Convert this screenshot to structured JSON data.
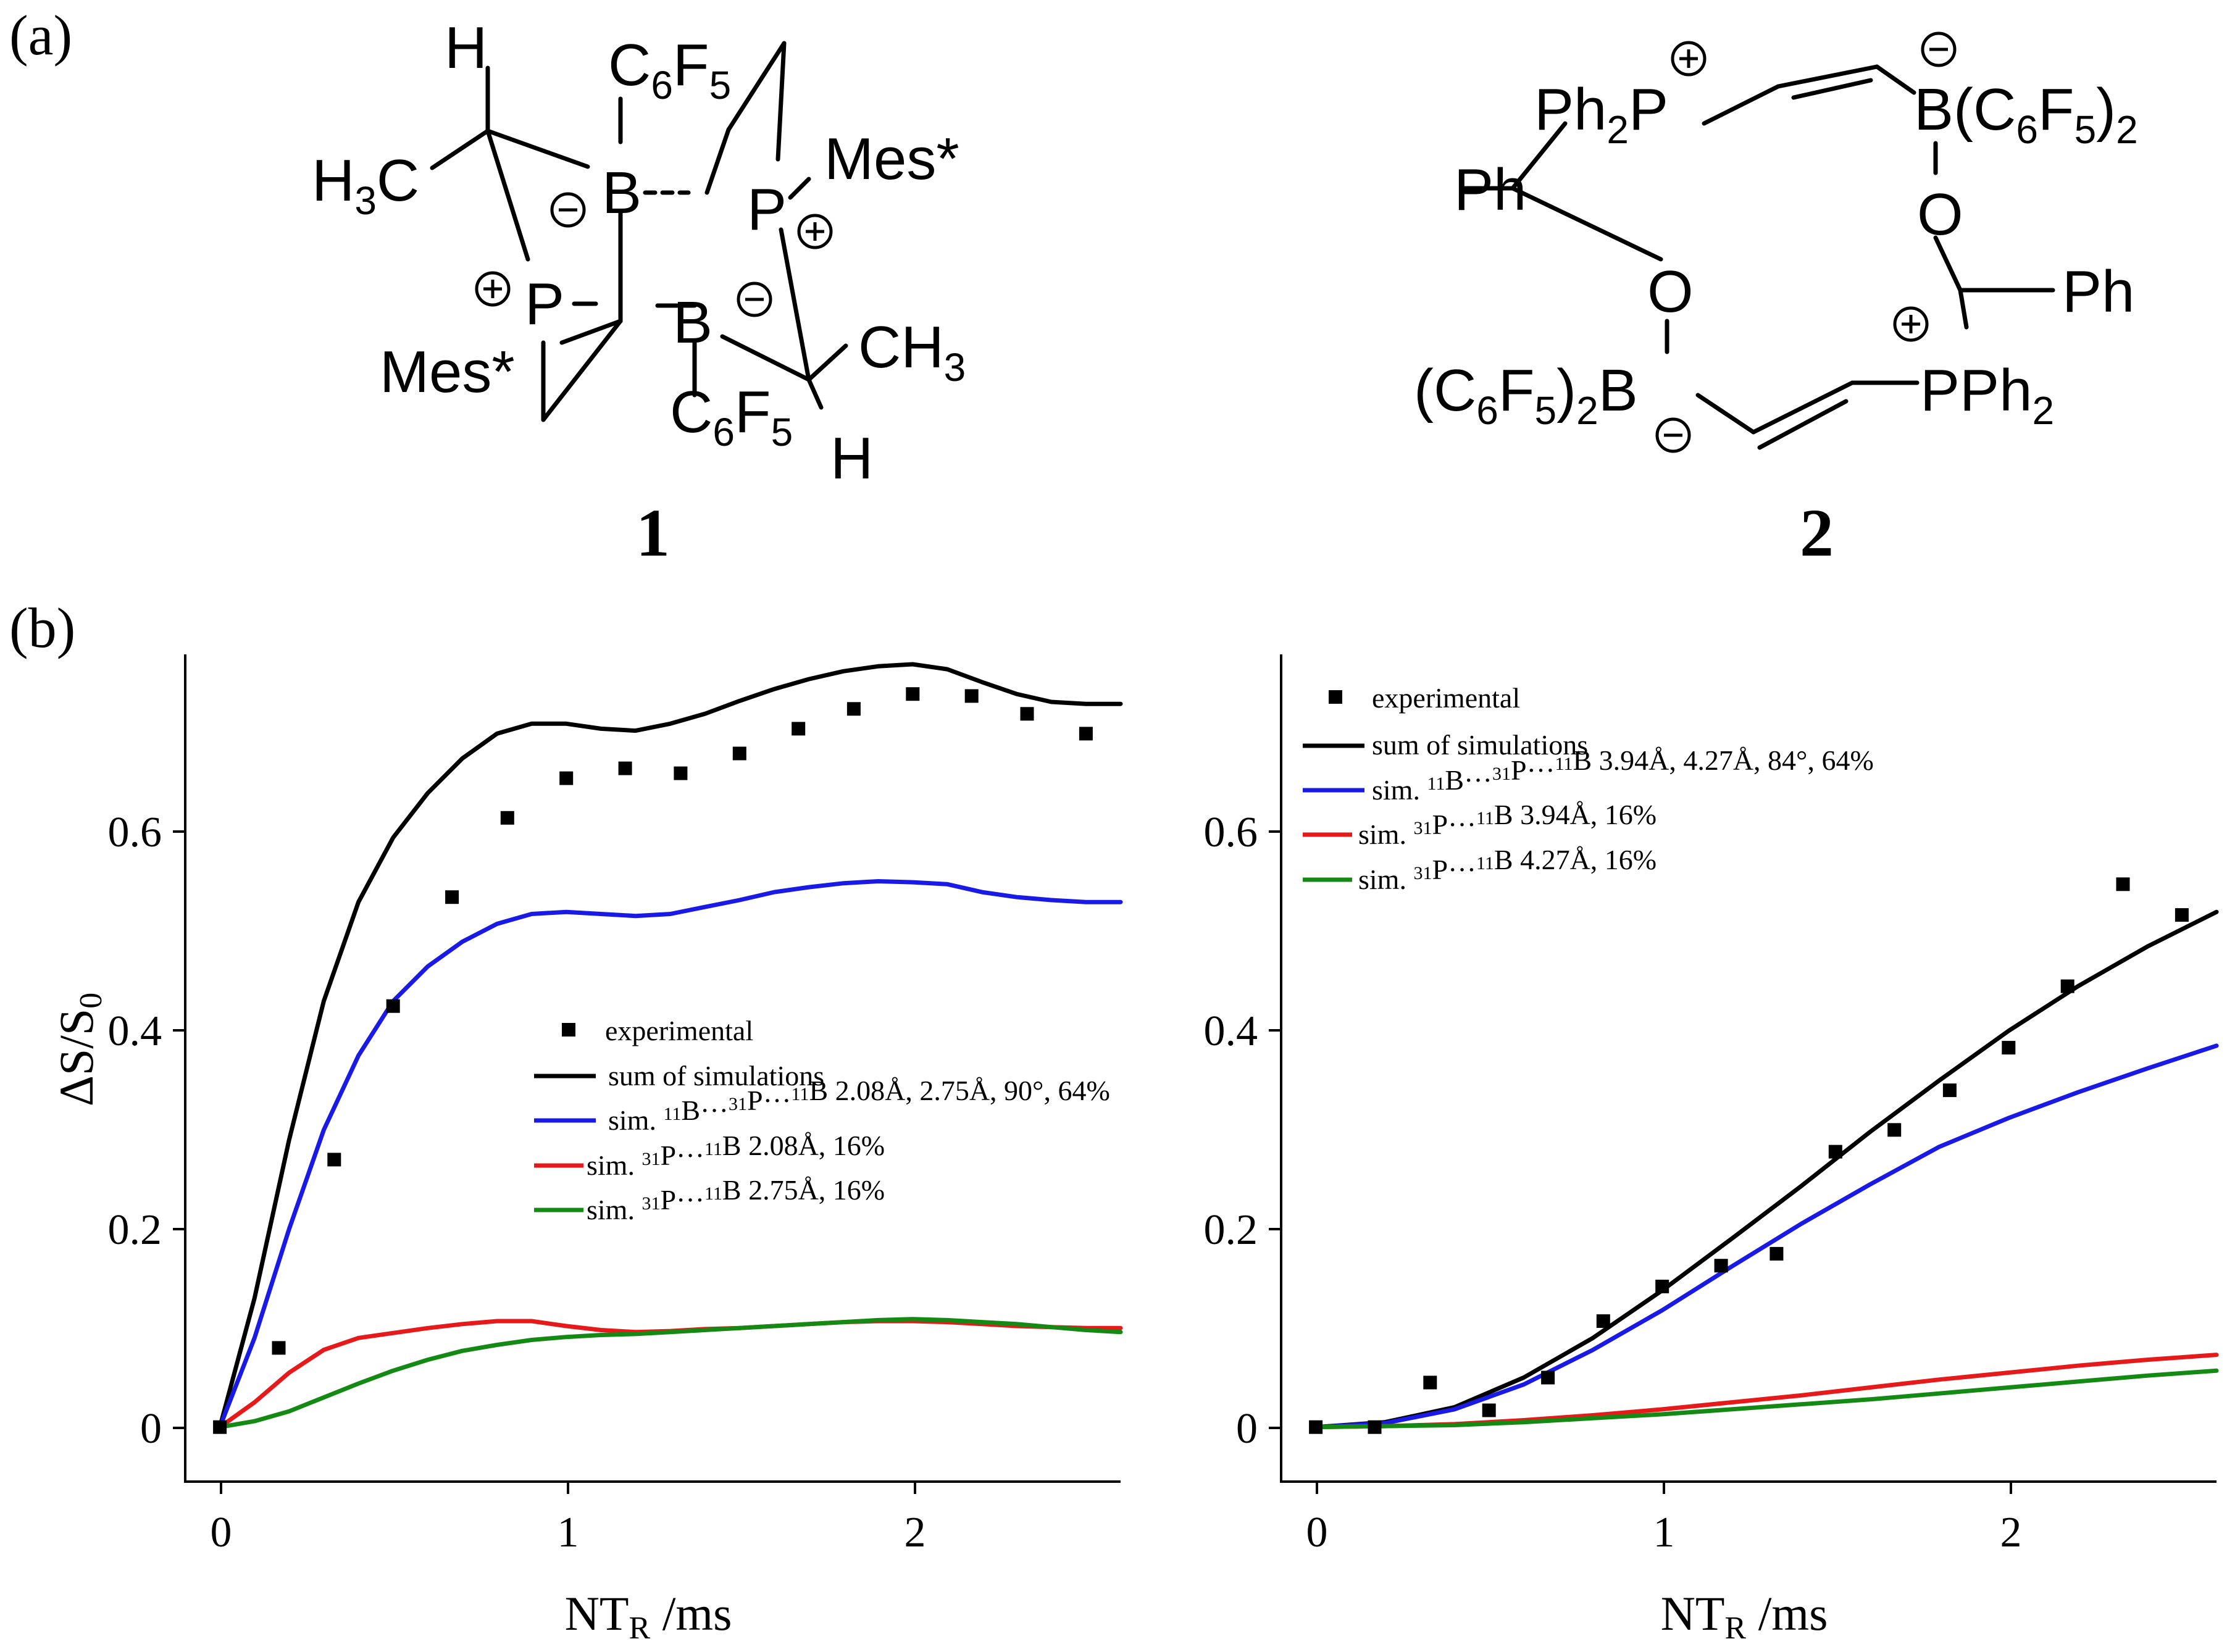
{
  "labels": {
    "panel_a": "(a)",
    "panel_b": "(b)"
  },
  "structures": {
    "c1": {
      "number": "1",
      "atoms": {
        "H_top": "H",
        "H3C": "H3C",
        "C6F5_top": "C6F5",
        "B1": "B",
        "Mes1": "Mes*",
        "P1": "P",
        "P2": "P",
        "B2": "B",
        "CH3": "CH3",
        "Mes2": "Mes*",
        "C6F5_bottom": "C6F5",
        "H_bottom": "H"
      }
    },
    "c2": {
      "number": "2",
      "atoms": {
        "Ph2P": "Ph2P",
        "BC6F5": "B(C6F5)2",
        "Ph_left": "Ph",
        "O_right": "O",
        "O_left": "O",
        "Ph_right": "Ph",
        "C6F52B": "(C6F5)2B",
        "PPh2": "PPh2"
      }
    }
  },
  "charges": {
    "plus": "+",
    "minus": "−"
  },
  "colors": {
    "experimental": "#000000",
    "sum": "#000000",
    "sim_BPB": "#1a1ae6",
    "sim_PB_a": "#e61a1a",
    "sim_PB_b": "#148a14"
  },
  "chart_data": [
    {
      "type": "line",
      "panel": "left",
      "xlabel": "NTR /ms",
      "ylabel": "ΔS/S0",
      "xlim": [
        -0.1,
        2.6
      ],
      "ylim": [
        -0.055,
        0.78
      ],
      "xticks": [
        "0",
        "1",
        "2"
      ],
      "yticks": [
        "0",
        "0.2",
        "0.4",
        "0.6"
      ],
      "series": [
        {
          "name": "experimental",
          "style": "markers",
          "x": [
            0,
            0.17,
            0.33,
            0.5,
            0.67,
            0.83,
            1.0,
            1.17,
            1.33,
            1.5,
            1.67,
            1.83,
            2.0,
            2.17,
            2.33,
            2.5
          ],
          "y": [
            0.0,
            0.08,
            0.27,
            0.425,
            0.535,
            0.615,
            0.655,
            0.665,
            0.66,
            0.68,
            0.705,
            0.725,
            0.74,
            0.738,
            0.72,
            0.7
          ]
        },
        {
          "name": "sum of simulations",
          "color": "#000000",
          "x": [
            0,
            0.1,
            0.2,
            0.3,
            0.4,
            0.5,
            0.6,
            0.7,
            0.8,
            0.9,
            1.0,
            1.1,
            1.2,
            1.3,
            1.4,
            1.5,
            1.6,
            1.7,
            1.8,
            1.9,
            2.0,
            2.1,
            2.2,
            2.3,
            2.4,
            2.5,
            2.6
          ],
          "y": [
            0.0,
            0.13,
            0.29,
            0.43,
            0.53,
            0.595,
            0.64,
            0.675,
            0.7,
            0.71,
            0.71,
            0.705,
            0.703,
            0.71,
            0.72,
            0.733,
            0.745,
            0.755,
            0.763,
            0.768,
            0.77,
            0.765,
            0.752,
            0.74,
            0.732,
            0.73,
            0.73
          ]
        },
        {
          "name": "sim. 11B···31P···11B 2.08Å, 2.75Å, 90°, 64%",
          "color": "#1a1ae6",
          "x": [
            0,
            0.1,
            0.2,
            0.3,
            0.4,
            0.5,
            0.6,
            0.7,
            0.8,
            0.9,
            1.0,
            1.1,
            1.2,
            1.3,
            1.4,
            1.5,
            1.6,
            1.7,
            1.8,
            1.9,
            2.0,
            2.1,
            2.2,
            2.3,
            2.4,
            2.5,
            2.6
          ],
          "y": [
            0.0,
            0.09,
            0.2,
            0.3,
            0.375,
            0.43,
            0.465,
            0.49,
            0.508,
            0.518,
            0.52,
            0.518,
            0.516,
            0.518,
            0.525,
            0.532,
            0.54,
            0.545,
            0.549,
            0.551,
            0.55,
            0.548,
            0.54,
            0.535,
            0.532,
            0.53,
            0.53
          ]
        },
        {
          "name": "sim. 31P···11B 2.08Å, 16%",
          "color": "#e61a1a",
          "x": [
            0,
            0.1,
            0.2,
            0.3,
            0.4,
            0.5,
            0.6,
            0.7,
            0.8,
            0.9,
            1.0,
            1.1,
            1.2,
            1.3,
            1.4,
            1.5,
            1.6,
            1.7,
            1.8,
            1.9,
            2.0,
            2.1,
            2.2,
            2.3,
            2.4,
            2.5,
            2.6
          ],
          "y": [
            0.0,
            0.025,
            0.055,
            0.078,
            0.09,
            0.095,
            0.1,
            0.104,
            0.107,
            0.107,
            0.102,
            0.098,
            0.096,
            0.097,
            0.099,
            0.1,
            0.102,
            0.104,
            0.106,
            0.107,
            0.107,
            0.106,
            0.104,
            0.102,
            0.101,
            0.1,
            0.1
          ]
        },
        {
          "name": "sim. 31P···11B 2.75Å, 16%",
          "color": "#148a14",
          "x": [
            0,
            0.1,
            0.2,
            0.3,
            0.4,
            0.5,
            0.6,
            0.7,
            0.8,
            0.9,
            1.0,
            1.1,
            1.2,
            1.3,
            1.4,
            1.5,
            1.6,
            1.7,
            1.8,
            1.9,
            2.0,
            2.1,
            2.2,
            2.3,
            2.4,
            2.5,
            2.6
          ],
          "y": [
            0.0,
            0.006,
            0.016,
            0.03,
            0.044,
            0.057,
            0.068,
            0.077,
            0.083,
            0.088,
            0.091,
            0.093,
            0.094,
            0.096,
            0.098,
            0.1,
            0.102,
            0.104,
            0.106,
            0.108,
            0.109,
            0.108,
            0.106,
            0.104,
            0.101,
            0.098,
            0.096
          ]
        }
      ],
      "legend": [
        "experimental",
        "sum of simulations",
        "sim. ¹¹B···³¹P···¹¹B 2.08Å, 2.75Å, 90°, 64%",
        "sim. ³¹P···¹¹B       2.08Å, 16%",
        "sim. ³¹P···¹¹B       2.75Å, 16%"
      ]
    },
    {
      "type": "line",
      "panel": "right",
      "xlabel": "NTR /ms",
      "ylabel": "",
      "xlim": [
        -0.1,
        2.6
      ],
      "ylim": [
        -0.055,
        0.78
      ],
      "xticks": [
        "0",
        "1",
        "2"
      ],
      "yticks": [
        "0",
        "0.2",
        "0.4",
        "0.6"
      ],
      "series": [
        {
          "name": "experimental",
          "style": "markers",
          "x": [
            0,
            0.17,
            0.33,
            0.5,
            0.67,
            0.83,
            1.0,
            1.17,
            1.33,
            1.5,
            1.67,
            1.83,
            2.0,
            2.17,
            2.33,
            2.5
          ],
          "y": [
            0.0,
            0.0,
            0.045,
            0.017,
            0.05,
            0.107,
            0.142,
            0.163,
            0.175,
            0.278,
            0.3,
            0.34,
            0.383,
            0.445,
            0.548,
            0.517
          ]
        },
        {
          "name": "sum of simulations",
          "color": "#000000",
          "x": [
            0,
            0.2,
            0.4,
            0.6,
            0.8,
            1.0,
            1.2,
            1.4,
            1.6,
            1.8,
            2.0,
            2.2,
            2.4,
            2.6
          ],
          "y": [
            0.0,
            0.005,
            0.02,
            0.05,
            0.09,
            0.138,
            0.19,
            0.243,
            0.298,
            0.35,
            0.4,
            0.445,
            0.485,
            0.52
          ]
        },
        {
          "name": "sim. 11B···31P···11B 3.94Å, 4.27Å, 84°, 64%",
          "color": "#1a1ae6",
          "x": [
            0,
            0.2,
            0.4,
            0.6,
            0.8,
            1.0,
            1.2,
            1.4,
            1.6,
            1.8,
            2.0,
            2.2,
            2.4,
            2.6
          ],
          "y": [
            0.0,
            0.004,
            0.018,
            0.043,
            0.078,
            0.118,
            0.162,
            0.205,
            0.245,
            0.283,
            0.312,
            0.338,
            0.362,
            0.385
          ]
        },
        {
          "name": "sim. 31P···11B 3.94Å, 16%",
          "color": "#e61a1a",
          "x": [
            0,
            0.2,
            0.4,
            0.6,
            0.8,
            1.0,
            1.2,
            1.4,
            1.6,
            1.8,
            2.0,
            2.2,
            2.4,
            2.6
          ],
          "y": [
            0.0,
            0.001,
            0.003,
            0.007,
            0.012,
            0.018,
            0.025,
            0.032,
            0.04,
            0.048,
            0.055,
            0.062,
            0.068,
            0.073
          ]
        },
        {
          "name": "sim. 31P···11B 4.27Å, 16%",
          "color": "#148a14",
          "x": [
            0,
            0.2,
            0.4,
            0.6,
            0.8,
            1.0,
            1.2,
            1.4,
            1.6,
            1.8,
            2.0,
            2.2,
            2.4,
            2.6
          ],
          "y": [
            0.0,
            0.001,
            0.002,
            0.005,
            0.009,
            0.013,
            0.018,
            0.023,
            0.028,
            0.034,
            0.04,
            0.046,
            0.052,
            0.057
          ]
        }
      ],
      "legend": [
        "experimental",
        "sum of simulations",
        "sim. ¹¹B···³¹P···¹¹B 3.94Å, 4.27Å, 84°, 64%",
        "sim. ³¹P···¹¹B       3.94Å, 16%",
        "sim. ³¹P···¹¹B       4.27Å, 16%"
      ]
    }
  ]
}
